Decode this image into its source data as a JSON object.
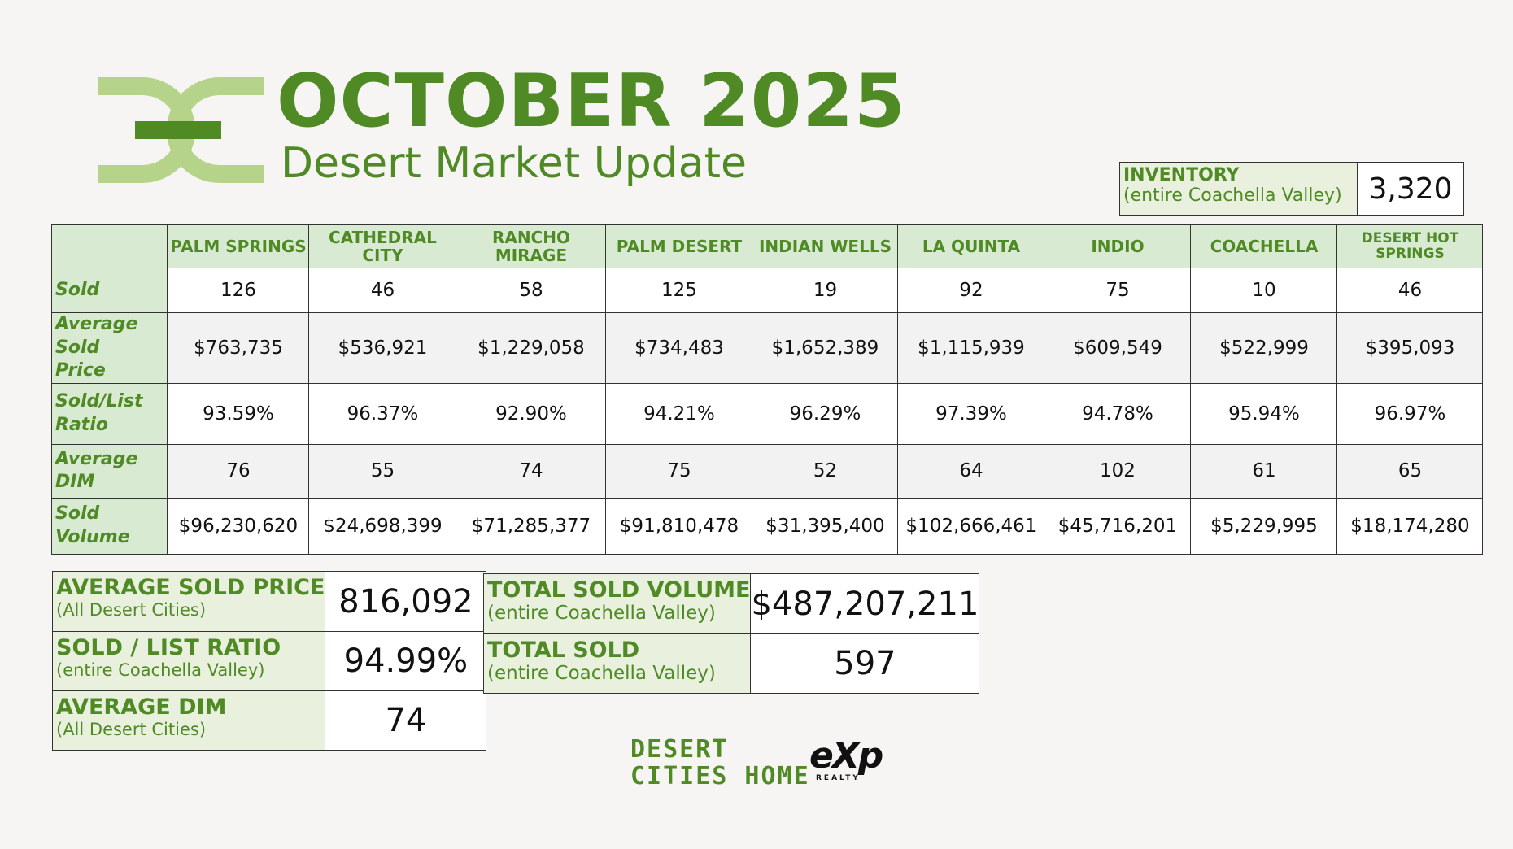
{
  "header": {
    "title": "OCTOBER 2025",
    "subtitle": "Desert Market Update"
  },
  "inventory": {
    "label": "INVENTORY",
    "sublabel": "(entire Coachella Valley)",
    "value": "3,320"
  },
  "table": {
    "columns": [
      "PALM SPRINGS",
      "CATHEDRAL CITY",
      "RANCHO MIRAGE",
      "PALM DESERT",
      "INDIAN WELLS",
      "LA QUINTA",
      "INDIO",
      "COACHELLA",
      "DESERT HOT SPRINGS"
    ],
    "rows": [
      {
        "label": "Sold",
        "values": [
          "126",
          "46",
          "58",
          "125",
          "19",
          "92",
          "75",
          "10",
          "46"
        ]
      },
      {
        "label": "Average Sold Price",
        "values": [
          "$763,735",
          "$536,921",
          "$1,229,058",
          "$734,483",
          "$1,652,389",
          "$1,115,939",
          "$609,549",
          "$522,999",
          "$395,093"
        ]
      },
      {
        "label": "Sold/List Ratio",
        "values": [
          "93.59%",
          "96.37%",
          "92.90%",
          "94.21%",
          "96.29%",
          "97.39%",
          "94.78%",
          "95.94%",
          "96.97%"
        ]
      },
      {
        "label": "Average DIM",
        "values": [
          "76",
          "55",
          "74",
          "75",
          "52",
          "64",
          "102",
          "61",
          "65"
        ]
      },
      {
        "label": "Sold Volume",
        "values": [
          "$96,230,620",
          "$24,698,399",
          "$71,285,377",
          "$91,810,478",
          "$31,395,400",
          "$102,666,461",
          "$45,716,201",
          "$5,229,995",
          "$18,174,280"
        ]
      }
    ]
  },
  "summary_left": [
    {
      "label": "AVERAGE SOLD PRICE",
      "sublabel": "(All Desert Cities)",
      "value": "816,092"
    },
    {
      "label": "SOLD / LIST RATIO",
      "sublabel": "(entire Coachella Valley)",
      "value": "94.99%"
    },
    {
      "label": "AVERAGE DIM",
      "sublabel": "(All Desert Cities)",
      "value": "74"
    }
  ],
  "summary_right": [
    {
      "label": "TOTAL SOLD VOLUME",
      "sublabel": "(entire Coachella Valley)",
      "value": "$487,207,211"
    },
    {
      "label": "TOTAL SOLD",
      "sublabel": "(entire Coachella Valley)",
      "value": "597"
    }
  ],
  "brand": {
    "line1": "DESERT",
    "line2": "CITIES HOME",
    "partner_logo": "eXp",
    "partner_sub": "REALTY"
  },
  "colors": {
    "accent": "#4f8a25",
    "logo_light": "#b5d48a",
    "header_fill": "#d9ead3"
  }
}
